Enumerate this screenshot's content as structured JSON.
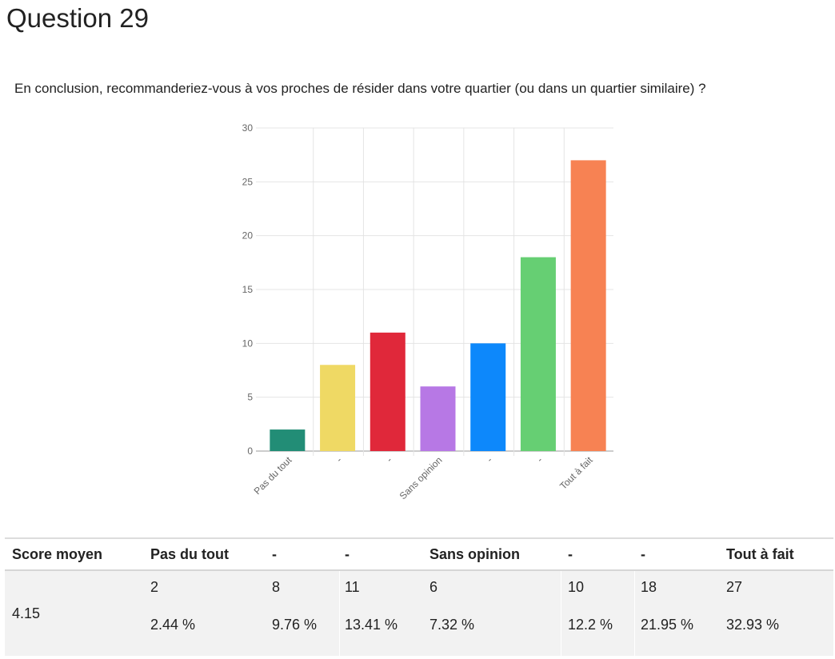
{
  "question_title": "Question 29",
  "question_text": "En conclusion, recommanderiez-vous à vos proches de résider dans votre quartier (ou dans un quartier similaire) ?",
  "chart_data": {
    "type": "bar",
    "title": "",
    "xlabel": "",
    "ylabel": "",
    "categories": [
      "Pas du tout",
      "-",
      "-",
      "Sans opinion",
      "-",
      "-",
      "Tout à fait"
    ],
    "values": [
      2,
      8,
      11,
      6,
      10,
      18,
      27
    ],
    "colors": [
      "#228d76",
      "#efd964",
      "#e0283a",
      "#b778e5",
      "#0d88fb",
      "#66cf73",
      "#f78253"
    ],
    "ylim": [
      0,
      30
    ],
    "yticks": [
      0,
      5,
      10,
      15,
      20,
      25,
      30
    ],
    "grid": true,
    "legend": "none"
  },
  "table": {
    "headers": [
      "Score moyen",
      "Pas du tout",
      "-",
      "-",
      "Sans opinion",
      "-",
      "-",
      "Tout à fait"
    ],
    "score": "4.15",
    "counts": [
      "2",
      "8",
      "11",
      "6",
      "10",
      "18",
      "27"
    ],
    "percents": [
      "2.44 %",
      "9.76 %",
      "13.41 %",
      "7.32 %",
      "12.2 %",
      "21.95 %",
      "32.93 %"
    ]
  }
}
